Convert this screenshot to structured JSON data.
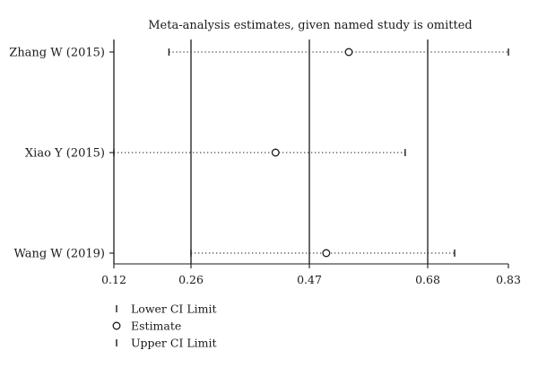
{
  "chart_data": {
    "type": "forest-sensitivity",
    "title": "Meta-analysis estimates, given named study is omitted",
    "studies": [
      {
        "name": "Zhang W (2015)",
        "lower": 0.22,
        "estimate": 0.54,
        "upper": 0.83
      },
      {
        "name": "Xiao Y (2015)",
        "lower": 0.12,
        "estimate": 0.41,
        "upper": 0.64
      },
      {
        "name": "Wang W (2019)",
        "lower": 0.26,
        "estimate": 0.5,
        "upper": 0.73
      }
    ],
    "x_ticks": [
      0.12,
      0.26,
      0.47,
      0.68,
      0.83
    ],
    "x_tick_labels": [
      "0.12",
      "0.26",
      "0.47",
      "0.68",
      "0.83"
    ],
    "xlim": [
      0.12,
      0.83
    ],
    "reference_lines": [
      0.12,
      0.26,
      0.47,
      0.68
    ],
    "legend": [
      {
        "symbol": "lower-bar",
        "label": "Lower CI Limit"
      },
      {
        "symbol": "estimate-circle",
        "label": "Estimate"
      },
      {
        "symbol": "upper-bar",
        "label": "Upper CI Limit"
      }
    ],
    "colors": {
      "ink": "#1a1a1a",
      "background": "#ffffff"
    }
  }
}
